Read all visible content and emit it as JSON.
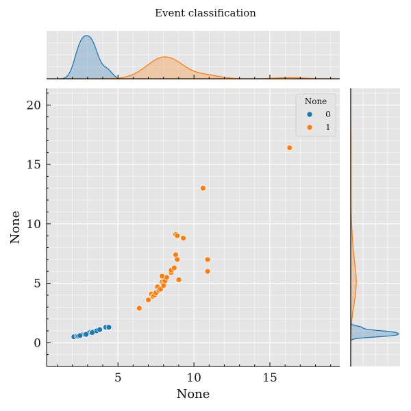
{
  "chart_data": {
    "type": "scatter",
    "title": "Event classification",
    "xlabel": "None",
    "ylabel": "None",
    "xlim": [
      0.3,
      19.6
    ],
    "ylim": [
      -2.0,
      21.4
    ],
    "xticks": [
      5,
      10,
      15
    ],
    "yticks": [
      0,
      5,
      10,
      15,
      20
    ],
    "grid": true,
    "legend": {
      "title": "None",
      "placement": "top-right"
    },
    "marginals": {
      "top": "kde",
      "right": "kde"
    },
    "colors": {
      "0": "#1f77b4",
      "1": "#ff7f0e",
      "panel_bg": "#e5e5e5",
      "grid": "#ffffff"
    },
    "series": [
      {
        "name": "0",
        "points": [
          [
            2.1,
            0.5
          ],
          [
            2.3,
            0.55
          ],
          [
            2.4,
            0.55
          ],
          [
            2.5,
            0.6
          ],
          [
            2.6,
            0.65
          ],
          [
            2.7,
            0.7
          ],
          [
            2.8,
            0.7
          ],
          [
            2.9,
            0.75
          ],
          [
            3.0,
            0.8
          ],
          [
            3.1,
            0.85
          ],
          [
            3.2,
            0.9
          ],
          [
            3.3,
            0.9
          ],
          [
            3.4,
            0.95
          ],
          [
            3.5,
            0.95
          ],
          [
            3.6,
            1.0
          ],
          [
            3.8,
            1.1
          ],
          [
            4.2,
            1.3
          ],
          [
            4.4,
            1.3
          ],
          [
            2.5,
            0.6
          ],
          [
            2.9,
            0.7
          ],
          [
            3.3,
            0.85
          ]
        ]
      },
      {
        "name": "1",
        "points": [
          [
            6.4,
            2.9
          ],
          [
            7.0,
            3.6
          ],
          [
            7.2,
            4.1
          ],
          [
            7.3,
            3.9
          ],
          [
            7.4,
            4.0
          ],
          [
            7.5,
            4.2
          ],
          [
            7.6,
            4.7
          ],
          [
            7.7,
            4.4
          ],
          [
            7.8,
            4.5
          ],
          [
            7.9,
            5.1
          ],
          [
            8.0,
            5.0
          ],
          [
            8.0,
            4.8
          ],
          [
            8.1,
            5.2
          ],
          [
            8.2,
            5.5
          ],
          [
            7.9,
            5.6
          ],
          [
            8.5,
            5.9
          ],
          [
            8.5,
            6.1
          ],
          [
            8.7,
            6.3
          ],
          [
            8.8,
            7.4
          ],
          [
            8.9,
            7.0
          ],
          [
            8.8,
            9.1
          ],
          [
            8.9,
            9.0
          ],
          [
            9.0,
            5.3
          ],
          [
            9.3,
            8.8
          ],
          [
            10.6,
            13.0
          ],
          [
            10.9,
            7.0
          ],
          [
            10.9,
            6.0
          ],
          [
            16.3,
            16.4
          ]
        ]
      }
    ]
  }
}
